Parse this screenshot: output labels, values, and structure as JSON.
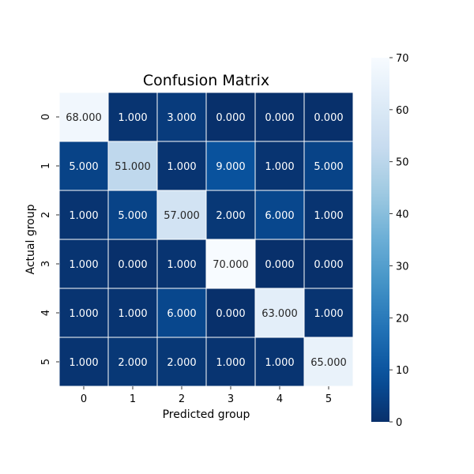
{
  "chart_data": {
    "type": "heatmap",
    "title": "Confusion Matrix",
    "xlabel": "Predicted group",
    "ylabel": "Actual group",
    "x_categories": [
      "0",
      "1",
      "2",
      "3",
      "4",
      "5"
    ],
    "y_categories": [
      "0",
      "1",
      "2",
      "3",
      "4",
      "5"
    ],
    "matrix": [
      [
        68,
        1,
        3,
        0,
        0,
        0
      ],
      [
        5,
        51,
        1,
        9,
        1,
        5
      ],
      [
        1,
        5,
        57,
        2,
        6,
        1
      ],
      [
        1,
        0,
        1,
        70,
        0,
        0
      ],
      [
        1,
        1,
        6,
        0,
        63,
        1
      ],
      [
        1,
        2,
        2,
        1,
        1,
        65
      ]
    ],
    "cell_labels": [
      [
        "68.000",
        "1.000",
        "3.000",
        "0.000",
        "0.000",
        "0.000"
      ],
      [
        "5.000",
        "51.000",
        "1.000",
        "9.000",
        "1.000",
        "5.000"
      ],
      [
        "1.000",
        "5.000",
        "57.000",
        "2.000",
        "6.000",
        "1.000"
      ],
      [
        "1.000",
        "0.000",
        "1.000",
        "70.000",
        "0.000",
        "0.000"
      ],
      [
        "1.000",
        "1.000",
        "6.000",
        "0.000",
        "63.000",
        "1.000"
      ],
      [
        "1.000",
        "2.000",
        "2.000",
        "1.000",
        "1.000",
        "65.000"
      ]
    ],
    "colorbar": {
      "range": [
        0,
        70
      ],
      "ticks": [
        "0",
        "10",
        "20",
        "30",
        "40",
        "50",
        "60",
        "70"
      ],
      "colormap": "Blues_r"
    },
    "grid_lines_color": "#ffffff"
  }
}
